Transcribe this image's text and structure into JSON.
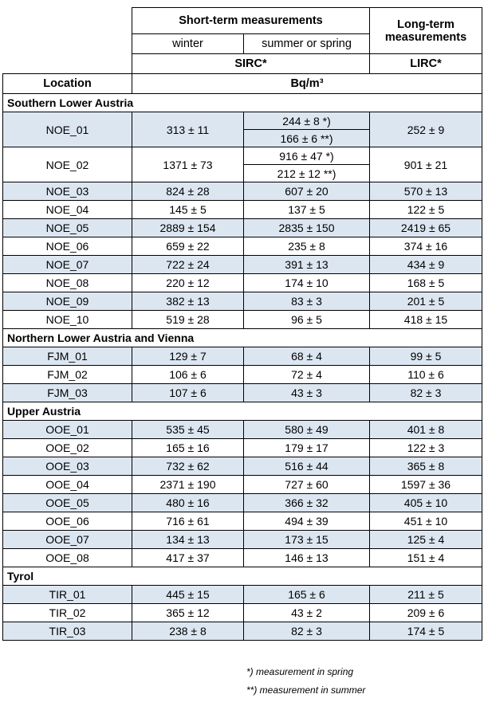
{
  "header": {
    "short_term": "Short-term measurements",
    "long_term": "Long-term measurements",
    "winter": "winter",
    "summer_spring": "summer or spring",
    "sirc": "SIRC*",
    "lirc": "LIRC*",
    "location": "Location",
    "unit": "Bq/m³"
  },
  "sections": [
    {
      "title": "Southern Lower Austria",
      "rows": [
        {
          "location": "NOE_01",
          "winter": "313 ± 11",
          "summer": [
            "244 ± 8 *)",
            "166 ± 6 **)"
          ],
          "lirc": "252 ± 9"
        },
        {
          "location": "NOE_02",
          "winter": "1371 ± 73",
          "summer": [
            "916 ± 47 *)",
            "212 ± 12 **)"
          ],
          "lirc": "901 ± 21"
        },
        {
          "location": "NOE_03",
          "winter": "824 ± 28",
          "summer": "607 ± 20",
          "lirc": "570 ± 13"
        },
        {
          "location": "NOE_04",
          "winter": "145 ± 5",
          "summer": "137 ± 5",
          "lirc": "122 ± 5"
        },
        {
          "location": "NOE_05",
          "winter": "2889 ± 154",
          "summer": "2835 ± 150",
          "lirc": "2419 ± 65"
        },
        {
          "location": "NOE_06",
          "winter": "659 ± 22",
          "summer": "235 ± 8",
          "lirc": "374 ± 16"
        },
        {
          "location": "NOE_07",
          "winter": "722 ± 24",
          "summer": "391 ± 13",
          "lirc": "434 ± 9"
        },
        {
          "location": "NOE_08",
          "winter": "220 ± 12",
          "summer": "174 ± 10",
          "lirc": "168 ± 5"
        },
        {
          "location": "NOE_09",
          "winter": "382 ± 13",
          "summer": "83 ± 3",
          "lirc": "201 ± 5"
        },
        {
          "location": "NOE_10",
          "winter": "519 ± 28",
          "summer": "96 ± 5",
          "lirc": "418 ± 15"
        }
      ]
    },
    {
      "title": "Northern Lower Austria and Vienna",
      "rows": [
        {
          "location": "FJM_01",
          "winter": "129 ± 7",
          "summer": "68 ± 4",
          "lirc": "99 ± 5"
        },
        {
          "location": "FJM_02",
          "winter": "106 ± 6",
          "summer": "72 ± 4",
          "lirc": "110 ± 6"
        },
        {
          "location": "FJM_03",
          "winter": "107 ± 6",
          "summer": "43 ± 3",
          "lirc": "82 ± 3"
        }
      ]
    },
    {
      "title": "Upper Austria",
      "rows": [
        {
          "location": "OOE_01",
          "winter": "535 ± 45",
          "summer": "580 ± 49",
          "lirc": "401 ± 8"
        },
        {
          "location": "OOE_02",
          "winter": "165 ± 16",
          "summer": "179 ± 17",
          "lirc": "122 ± 3"
        },
        {
          "location": "OOE_03",
          "winter": "732 ± 62",
          "summer": "516 ± 44",
          "lirc": "365 ± 8"
        },
        {
          "location": "OOE_04",
          "winter": "2371 ± 190",
          "summer": "727 ± 60",
          "lirc": "1597 ± 36"
        },
        {
          "location": "OOE_05",
          "winter": "480 ± 16",
          "summer": "366 ± 32",
          "lirc": "405 ± 10"
        },
        {
          "location": "OOE_06",
          "winter": "716 ± 61",
          "summer": "494 ± 39",
          "lirc": "451 ± 10"
        },
        {
          "location": "OOE_07",
          "winter": "134 ± 13",
          "summer": "173 ± 15",
          "lirc": "125 ± 4"
        },
        {
          "location": "OOE_08",
          "winter": "417 ± 37",
          "summer": "146 ± 13",
          "lirc": "151 ± 4"
        }
      ]
    },
    {
      "title": "Tyrol",
      "rows": [
        {
          "location": "TIR_01",
          "winter": "445 ± 15",
          "summer": "165 ± 6",
          "lirc": "211 ± 5"
        },
        {
          "location": "TIR_02",
          "winter": "365 ± 12",
          "summer": "43 ± 2",
          "lirc": "209 ± 6"
        },
        {
          "location": "TIR_03",
          "winter": "238 ± 8",
          "summer": "82 ± 3",
          "lirc": "174 ± 5"
        }
      ]
    }
  ],
  "notes": {
    "spring": "*) measurement in spring",
    "summer": "**) measurement in summer"
  }
}
